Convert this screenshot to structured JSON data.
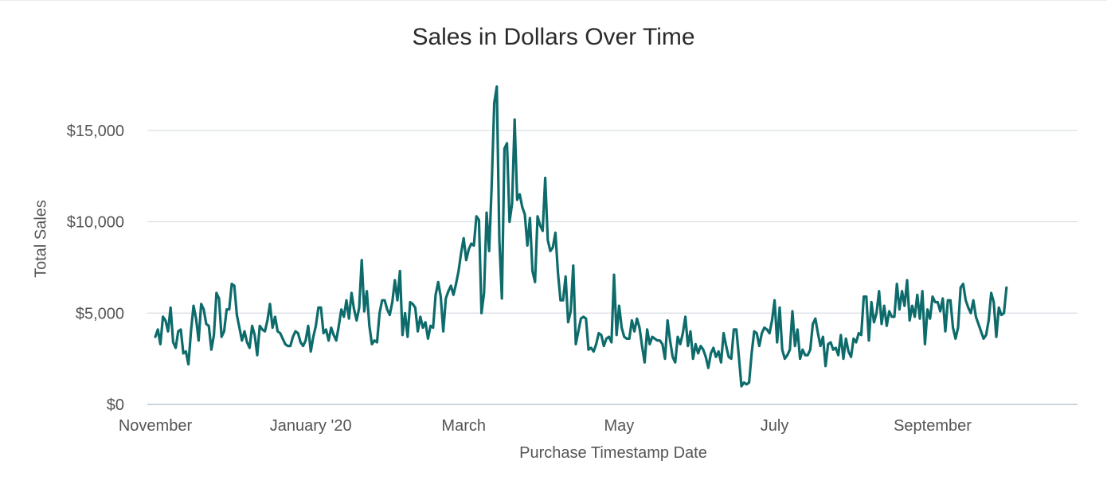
{
  "chart_data": {
    "type": "line",
    "title": "Sales in Dollars Over Time",
    "xlabel": "Purchase Timestamp Date",
    "ylabel": "Total Sales",
    "x_tick_labels": [
      "November",
      "January '20",
      "March",
      "May",
      "July",
      "September"
    ],
    "y_tick_labels": [
      "$0",
      "$5,000",
      "$10,000",
      "$15,000"
    ],
    "y_ticks": [
      0,
      5000,
      10000,
      15000
    ],
    "ylim": [
      0,
      18000
    ],
    "x_start": "2019-11-01",
    "x_tick_dates": [
      "2019-11-01",
      "2020-01-01",
      "2020-03-01",
      "2020-05-01",
      "2020-07-01",
      "2020-09-01"
    ],
    "grid": true,
    "legend": "none",
    "colors": {
      "line": "#0e6b6b",
      "grid": "#d9dde0",
      "axis": "#b8c7d2"
    },
    "series": [
      {
        "values": [
          3700,
          4100,
          3300,
          4800,
          4600,
          4000,
          5300,
          3400,
          3100,
          4000,
          4100,
          2800,
          2900,
          2200,
          4000,
          5400,
          4700,
          3500,
          5500,
          5200,
          4400,
          4300,
          3000,
          3800,
          6100,
          5800,
          3700,
          4000,
          5200,
          5200,
          6600,
          6500,
          4900,
          4200,
          3500,
          4000,
          3400,
          3100,
          4300,
          3800,
          2700,
          4300,
          4100,
          4000,
          4600,
          5500,
          4200,
          4800,
          4000,
          3900,
          3600,
          3300,
          3200,
          3200,
          3700,
          4000,
          3900,
          3400,
          3200,
          3500,
          4300,
          2900,
          3700,
          4300,
          5300,
          5300,
          3900,
          4100,
          3500,
          4200,
          3800,
          3500,
          4300,
          5200,
          4800,
          5700,
          4700,
          6100,
          5200,
          4600,
          5300,
          7900,
          5100,
          6200,
          4300,
          3300,
          3500,
          3400,
          5000,
          5700,
          5700,
          5200,
          4900,
          5600,
          6800,
          5700,
          7300,
          3800,
          5000,
          3700,
          5600,
          5500,
          5300,
          4000,
          4800,
          4200,
          4500,
          3600,
          4300,
          4200,
          6000,
          6700,
          5900,
          4000,
          5800,
          6200,
          6500,
          6000,
          6600,
          7300,
          8300,
          9100,
          7900,
          8500,
          8800,
          8700,
          10300,
          10100,
          5000,
          6100,
          10500,
          8400,
          12000,
          16500,
          17400,
          9000,
          5800,
          14000,
          14300,
          10000,
          11000,
          15600,
          11200,
          11500,
          10800,
          10400,
          8700,
          10200,
          7300,
          6700,
          10300,
          9800,
          9500,
          12400,
          9000,
          8400,
          8600,
          9400,
          7200,
          5700,
          5700,
          7000,
          4500,
          5100,
          7600,
          3300,
          4000,
          4700,
          4800,
          4700,
          3000,
          3100,
          2900,
          3300,
          3900,
          3800,
          3200,
          3600,
          3700,
          3400,
          7100,
          3800,
          5400,
          4200,
          3700,
          3600,
          3600,
          4600,
          4000,
          4700,
          4200,
          3200,
          2300,
          4100,
          3300,
          3700,
          3600,
          3500,
          3500,
          3300,
          2500,
          4600,
          3500,
          2600,
          2300,
          3700,
          3300,
          3900,
          4800,
          3200,
          4000,
          2500,
          3300,
          2800,
          3200,
          3000,
          2600,
          2000,
          2800,
          3100,
          2600,
          2900,
          2300,
          3900,
          3200,
          2600,
          2500,
          4100,
          4100,
          2600,
          1000,
          1200,
          1100,
          1200,
          2800,
          4000,
          3900,
          3200,
          3900,
          4200,
          4100,
          3900,
          4600,
          5700,
          3400,
          5300,
          3000,
          2500,
          2700,
          3000,
          5100,
          3200,
          4100,
          2500,
          3000,
          2700,
          2700,
          3000,
          4400,
          4700,
          3900,
          3200,
          3700,
          2100,
          3300,
          3400,
          3000,
          3100,
          2700,
          3800,
          2500,
          3600,
          2900,
          2600,
          3600,
          3400,
          3900,
          3800,
          5900,
          5900,
          3500,
          5600,
          4500,
          5000,
          6200,
          4400,
          5400,
          4300,
          5100,
          4800,
          4800,
          6600,
          5200,
          6200,
          5400,
          6800,
          4600,
          5400,
          4800,
          6000,
          4700,
          6200,
          3300,
          5200,
          4700,
          5900,
          5600,
          5600,
          5100,
          5800,
          4000,
          5700,
          5700,
          4200,
          3600,
          4200,
          6400,
          6600,
          5700,
          5300,
          5000,
          5700,
          4800,
          4400,
          4000,
          3600,
          3800,
          4600,
          6100,
          5600,
          3700,
          5300,
          4900,
          5000,
          6400
        ]
      }
    ]
  }
}
